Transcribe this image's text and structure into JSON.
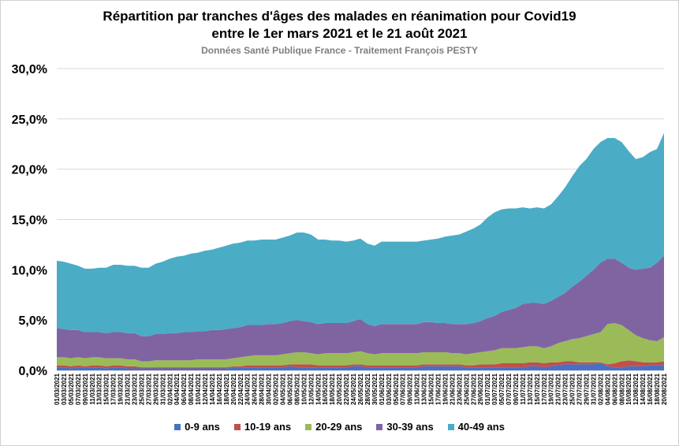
{
  "title_line1": "Répartition par tranches d'âges des malades en réanimation pour Covid19",
  "title_line2": "entre le 1er mars 2021 et le 21 août 2021",
  "subtitle": "Données Santé Publique France - Traitement François PESTY",
  "colors": {
    "0-9 ans": "#4472C4",
    "10-19 ans": "#C0504D",
    "20-29 ans": "#9BBB59",
    "30-39 ans": "#8064A2",
    "40-49 ans": "#4BACC6",
    "grid": "#d9d9d9"
  },
  "chart_data": {
    "type": "area",
    "stacked": true,
    "title": "Répartition par tranches d'âges des malades en réanimation pour Covid19 entre le 1er mars 2021 et le 21 août 2021",
    "subtitle": "Données Santé Publique France - Traitement François PESTY",
    "xlabel": "",
    "ylabel": "",
    "ylim": [
      0,
      30
    ],
    "y_ticks": [
      "0,0%",
      "5,0%",
      "10,0%",
      "15,0%",
      "20,0%",
      "25,0%",
      "30,0%"
    ],
    "grid": true,
    "legend_position": "bottom",
    "x_tick_labels": [
      "01/03/2021",
      "03/03/2021",
      "05/03/2021",
      "07/03/2021",
      "09/03/2021",
      "11/03/2021",
      "13/03/2021",
      "15/03/2021",
      "17/03/2021",
      "19/03/2021",
      "21/03/2021",
      "23/03/2021",
      "25/03/2021",
      "27/03/2021",
      "29/03/2021",
      "31/03/2021",
      "02/04/2021",
      "04/04/2021",
      "06/04/2021",
      "08/04/2021",
      "10/04/2021",
      "12/04/2021",
      "14/04/2021",
      "16/04/2021",
      "18/04/2021",
      "20/04/2021",
      "22/04/2021",
      "24/04/2021",
      "26/04/2021",
      "28/04/2021",
      "30/04/2021",
      "02/05/2021",
      "04/05/2021",
      "06/05/2021",
      "08/05/2021",
      "10/05/2021",
      "12/05/2021",
      "14/05/2021",
      "16/05/2021",
      "18/05/2021",
      "20/05/2021",
      "22/05/2021",
      "24/05/2021",
      "26/05/2021",
      "28/05/2021",
      "30/05/2021",
      "01/06/2021",
      "03/06/2021",
      "05/06/2021",
      "07/06/2021",
      "09/06/2021",
      "11/06/2021",
      "13/06/2021",
      "15/06/2021",
      "17/06/2021",
      "19/06/2021",
      "21/06/2021",
      "23/06/2021",
      "25/06/2021",
      "27/06/2021",
      "29/06/2021",
      "01/07/2021",
      "03/07/2021",
      "05/07/2021",
      "07/07/2021",
      "09/07/2021",
      "11/07/2021",
      "13/07/2021",
      "15/07/2021",
      "17/07/2021",
      "19/07/2021",
      "21/07/2021",
      "23/07/2021",
      "25/07/2021",
      "27/07/2021",
      "29/07/2021",
      "31/07/2021",
      "02/08/2021",
      "04/08/2021",
      "06/08/2021",
      "08/08/2021",
      "10/08/2021",
      "12/08/2021",
      "14/08/2021",
      "16/08/2021",
      "18/08/2021",
      "20/08/2021"
    ],
    "series": [
      {
        "name": "0-9 ans",
        "values": [
          0.3,
          0.3,
          0.2,
          0.3,
          0.3,
          0.3,
          0.3,
          0.2,
          0.3,
          0.3,
          0.2,
          0.2,
          0.2,
          0.2,
          0.2,
          0.2,
          0.2,
          0.2,
          0.2,
          0.2,
          0.2,
          0.2,
          0.2,
          0.2,
          0.2,
          0.3,
          0.3,
          0.3,
          0.3,
          0.3,
          0.3,
          0.3,
          0.3,
          0.4,
          0.3,
          0.3,
          0.3,
          0.3,
          0.3,
          0.3,
          0.3,
          0.3,
          0.4,
          0.4,
          0.3,
          0.3,
          0.3,
          0.3,
          0.3,
          0.3,
          0.3,
          0.3,
          0.4,
          0.4,
          0.4,
          0.4,
          0.4,
          0.4,
          0.3,
          0.3,
          0.3,
          0.3,
          0.3,
          0.3,
          0.3,
          0.3,
          0.3,
          0.4,
          0.4,
          0.3,
          0.4,
          0.5,
          0.6,
          0.6,
          0.6,
          0.6,
          0.6,
          0.7,
          0.4,
          0.3,
          0.3,
          0.4,
          0.4,
          0.4,
          0.5,
          0.5,
          0.5
        ]
      },
      {
        "name": "10-19 ans",
        "values": [
          0.2,
          0.2,
          0.2,
          0.2,
          0.1,
          0.2,
          0.2,
          0.2,
          0.2,
          0.2,
          0.2,
          0.2,
          0.1,
          0.1,
          0.1,
          0.1,
          0.1,
          0.1,
          0.1,
          0.1,
          0.1,
          0.1,
          0.1,
          0.1,
          0.1,
          0.1,
          0.1,
          0.2,
          0.2,
          0.2,
          0.2,
          0.2,
          0.2,
          0.2,
          0.3,
          0.3,
          0.3,
          0.2,
          0.2,
          0.2,
          0.2,
          0.2,
          0.2,
          0.2,
          0.2,
          0.2,
          0.2,
          0.2,
          0.2,
          0.2,
          0.2,
          0.2,
          0.2,
          0.2,
          0.2,
          0.2,
          0.2,
          0.2,
          0.2,
          0.2,
          0.3,
          0.3,
          0.3,
          0.4,
          0.4,
          0.4,
          0.4,
          0.4,
          0.4,
          0.4,
          0.4,
          0.3,
          0.3,
          0.3,
          0.2,
          0.2,
          0.2,
          0.1,
          0.2,
          0.4,
          0.6,
          0.6,
          0.5,
          0.4,
          0.3,
          0.3,
          0.4
        ]
      },
      {
        "name": "20-29 ans",
        "values": [
          0.8,
          0.8,
          0.8,
          0.8,
          0.8,
          0.8,
          0.8,
          0.8,
          0.7,
          0.7,
          0.7,
          0.7,
          0.6,
          0.6,
          0.7,
          0.7,
          0.7,
          0.7,
          0.7,
          0.7,
          0.8,
          0.8,
          0.8,
          0.8,
          0.8,
          0.8,
          0.9,
          0.9,
          1.0,
          1.0,
          1.0,
          1.0,
          1.1,
          1.1,
          1.2,
          1.2,
          1.1,
          1.1,
          1.2,
          1.2,
          1.2,
          1.2,
          1.2,
          1.3,
          1.2,
          1.1,
          1.2,
          1.2,
          1.2,
          1.2,
          1.2,
          1.2,
          1.2,
          1.2,
          1.2,
          1.2,
          1.1,
          1.1,
          1.1,
          1.2,
          1.2,
          1.3,
          1.4,
          1.5,
          1.5,
          1.5,
          1.6,
          1.6,
          1.6,
          1.5,
          1.6,
          1.9,
          2.0,
          2.2,
          2.4,
          2.6,
          2.8,
          3.0,
          4.0,
          4.0,
          3.6,
          3.0,
          2.6,
          2.4,
          2.2,
          2.1,
          2.4
        ]
      },
      {
        "name": "30-39 ans",
        "values": [
          2.9,
          2.8,
          2.8,
          2.7,
          2.6,
          2.5,
          2.5,
          2.5,
          2.6,
          2.6,
          2.6,
          2.6,
          2.5,
          2.5,
          2.6,
          2.6,
          2.7,
          2.7,
          2.8,
          2.8,
          2.8,
          2.8,
          2.9,
          2.9,
          3.0,
          3.0,
          3.0,
          3.1,
          3.0,
          3.0,
          3.1,
          3.1,
          3.1,
          3.2,
          3.2,
          3.1,
          3.1,
          3.0,
          3.0,
          3.0,
          3.0,
          3.0,
          3.1,
          3.2,
          2.9,
          2.8,
          2.9,
          2.9,
          2.9,
          2.9,
          2.9,
          2.9,
          3.0,
          3.0,
          2.9,
          2.9,
          2.9,
          2.9,
          3.0,
          3.0,
          3.1,
          3.3,
          3.4,
          3.6,
          3.8,
          4.0,
          4.3,
          4.3,
          4.3,
          4.4,
          4.5,
          4.6,
          4.8,
          5.2,
          5.6,
          6.0,
          6.4,
          6.9,
          6.5,
          6.4,
          6.2,
          6.2,
          6.5,
          6.9,
          7.2,
          7.8,
          8.1
        ]
      },
      {
        "name": "40-49 ans",
        "values": [
          6.7,
          6.7,
          6.6,
          6.4,
          6.3,
          6.3,
          6.4,
          6.5,
          6.7,
          6.7,
          6.7,
          6.7,
          6.8,
          6.8,
          7.0,
          7.2,
          7.4,
          7.6,
          7.6,
          7.8,
          7.8,
          8.0,
          8.0,
          8.2,
          8.3,
          8.4,
          8.4,
          8.4,
          8.4,
          8.5,
          8.4,
          8.4,
          8.5,
          8.5,
          8.7,
          8.8,
          8.7,
          8.4,
          8.3,
          8.2,
          8.2,
          8.1,
          8.0,
          8.0,
          8.0,
          8.0,
          8.2,
          8.2,
          8.2,
          8.2,
          8.2,
          8.2,
          8.1,
          8.2,
          8.4,
          8.6,
          8.8,
          8.9,
          9.2,
          9.4,
          9.6,
          10.0,
          10.3,
          10.2,
          10.1,
          9.9,
          9.6,
          9.4,
          9.5,
          9.5,
          9.6,
          10.0,
          10.5,
          11.0,
          11.5,
          11.6,
          12.0,
          12.0,
          12.0,
          12.0,
          12.0,
          11.6,
          11.0,
          11.1,
          11.5,
          11.3,
          12.2
        ]
      }
    ]
  }
}
